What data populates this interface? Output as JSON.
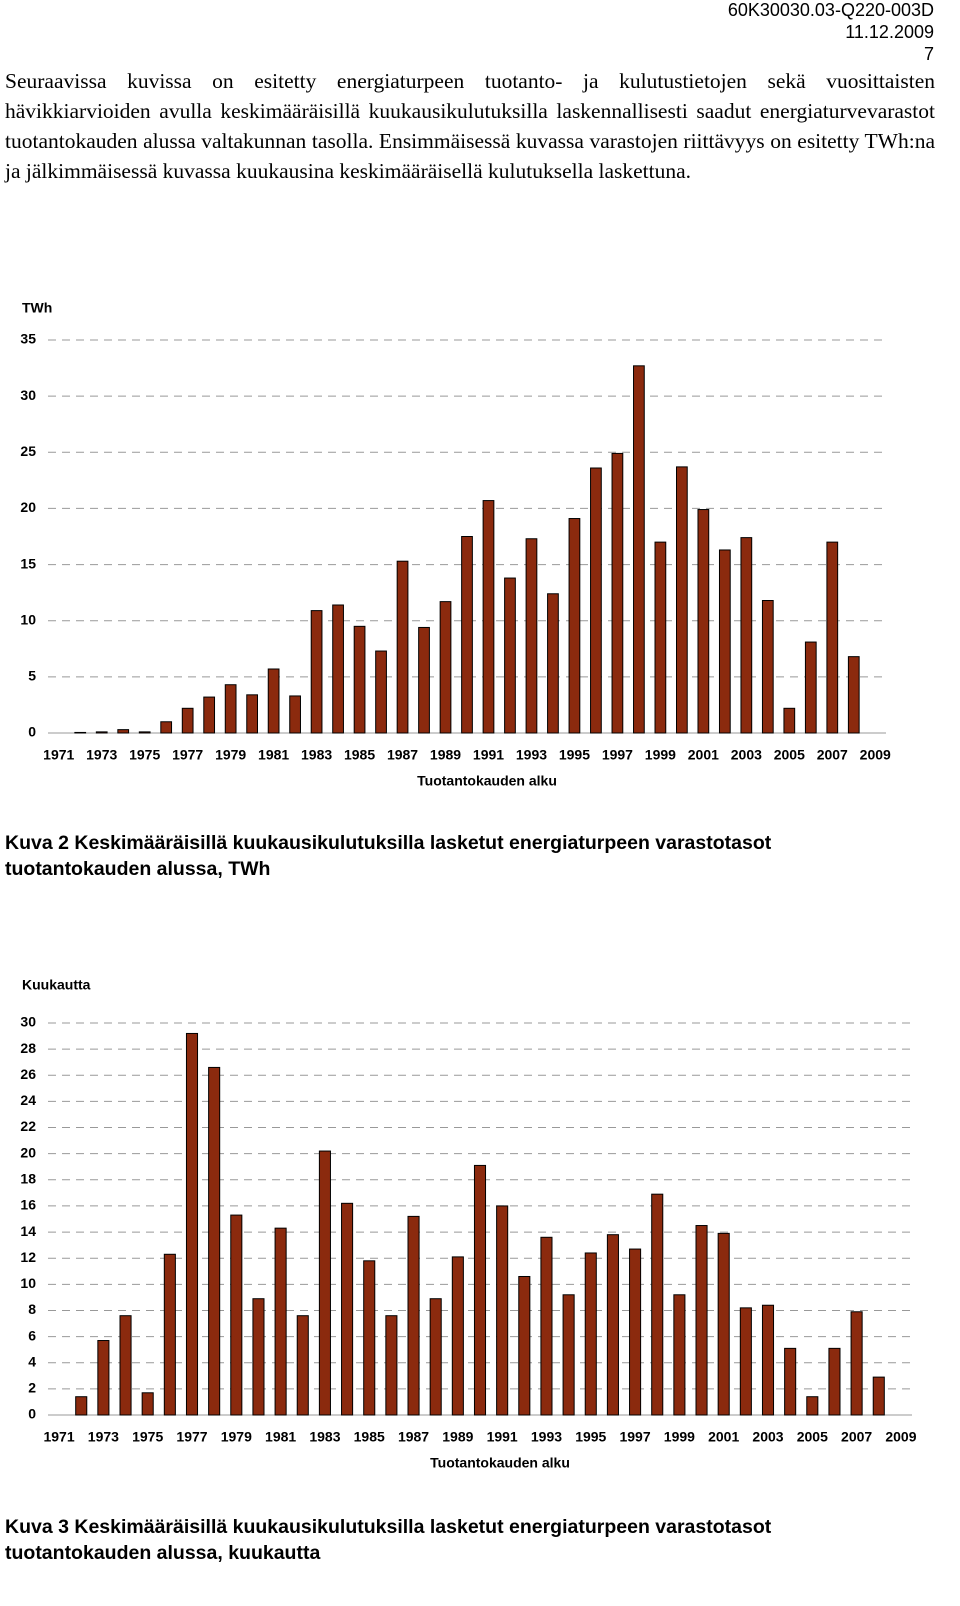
{
  "header": {
    "code": "60K30030.03-Q220-003D",
    "date": "11.12.2009",
    "page": "7"
  },
  "paragraph": "Seuraavissa kuvissa on esitetty energiaturpeen tuotanto- ja kulutustietojen sekä vuosittaisten hävikkiarvioiden avulla keskimääräisillä kuukausikulutuksilla laskennallisesti saadut energiaturvevarastot tuotantokauden alussa valtakunnan tasolla. Ensimmäisessä kuvassa varastojen riittävyys on esitetty TWh:na ja jälkimmäisessä kuvassa kuukausina keskimääräisellä kulutuksella laskettuna.",
  "chart_data": [
    {
      "type": "bar",
      "ylabel": "TWh",
      "xlabel": "Tuotantokauden alku",
      "caption": "Kuva 2 Keskimääräisillä kuukausikulutuksilla lasketut energiaturpeen varastotasot tuotantokauden alussa, TWh",
      "categories": [
        "1971",
        null,
        "1973",
        null,
        "1975",
        null,
        "1977",
        null,
        "1979",
        null,
        "1981",
        null,
        "1983",
        null,
        "1985",
        null,
        "1987",
        null,
        "1989",
        null,
        "1991",
        null,
        "1993",
        null,
        "1995",
        null,
        "1997",
        null,
        "1999",
        null,
        "2001",
        null,
        "2003",
        null,
        "2005",
        null,
        "2007",
        null,
        "2009"
      ],
      "values": [
        null,
        0.05,
        0.1,
        0.3,
        0.1,
        1.0,
        2.2,
        3.2,
        4.3,
        3.4,
        5.7,
        3.3,
        10.9,
        11.4,
        9.5,
        7.3,
        15.3,
        9.4,
        11.7,
        17.5,
        20.7,
        13.8,
        17.3,
        12.4,
        19.1,
        23.6,
        24.9,
        32.7,
        17.0,
        23.7,
        19.9,
        16.3,
        17.4,
        11.8,
        2.2,
        8.1,
        17.0,
        6.8,
        null
      ],
      "color": "#8b2a0e",
      "ylim": [
        0,
        35
      ],
      "yticks": [
        0,
        5,
        10,
        15,
        20,
        25,
        30,
        35
      ],
      "grid": true
    },
    {
      "type": "bar",
      "ylabel": "Kuukautta",
      "xlabel": "Tuotantokauden alku",
      "caption": "Kuva 3 Keskimääräisillä kuukausikulutuksilla lasketut energiaturpeen varastotasot tuotantokauden alussa, kuukautta",
      "categories": [
        "1971",
        null,
        "1973",
        null,
        "1975",
        null,
        "1977",
        null,
        "1979",
        null,
        "1981",
        null,
        "1983",
        null,
        "1985",
        null,
        "1987",
        null,
        "1989",
        null,
        "1991",
        null,
        "1993",
        null,
        "1995",
        null,
        "1997",
        null,
        "1999",
        null,
        "2001",
        null,
        "2003",
        null,
        "2005",
        null,
        "2007",
        null,
        "2009"
      ],
      "values": [
        null,
        1.4,
        5.7,
        7.6,
        1.7,
        12.3,
        29.2,
        26.6,
        15.3,
        8.9,
        14.3,
        7.6,
        20.2,
        16.2,
        11.8,
        7.6,
        15.2,
        8.9,
        12.1,
        19.1,
        16.0,
        10.6,
        13.6,
        9.2,
        12.4,
        13.8,
        12.7,
        16.9,
        9.2,
        14.5,
        13.9,
        8.2,
        8.4,
        5.1,
        1.4,
        5.1,
        7.9,
        2.9,
        null
      ],
      "color": "#8b2a0e",
      "ylim": [
        0,
        30
      ],
      "yticks": [
        0,
        2,
        4,
        6,
        8,
        10,
        12,
        14,
        16,
        18,
        20,
        22,
        24,
        26,
        28,
        30
      ],
      "grid": true
    }
  ]
}
